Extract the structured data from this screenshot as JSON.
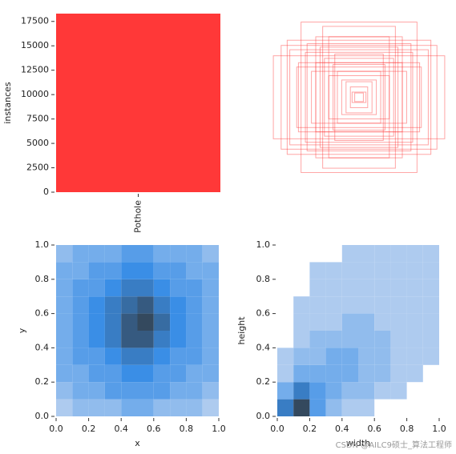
{
  "chart_data": [
    {
      "type": "bar",
      "categories": [
        "Pothole"
      ],
      "values": [
        18300
      ],
      "color": "#ff3838",
      "ylabel": "instances",
      "ylim": [
        0,
        18300
      ],
      "yticks": [
        0,
        2500,
        5000,
        7500,
        10000,
        12500,
        15000,
        17500
      ]
    },
    {
      "type": "boxes",
      "color": "#ff3838",
      "widths": [
        0.67,
        0.83,
        0.99,
        0.5,
        0.62,
        0.72,
        0.4,
        0.55,
        0.3,
        0.45,
        0.35,
        0.25,
        0.2,
        0.15,
        0.6,
        0.8,
        0.42,
        0.1,
        0.08,
        0.05,
        0.7,
        0.9,
        0.28,
        0.5,
        0.35
      ],
      "heights": [
        0.87,
        0.66,
        0.48,
        0.7,
        0.52,
        0.35,
        0.45,
        0.3,
        0.38,
        0.58,
        0.25,
        0.3,
        0.2,
        0.18,
        0.62,
        0.55,
        0.82,
        0.12,
        0.06,
        0.05,
        0.4,
        0.6,
        0.5,
        0.4,
        0.7
      ]
    },
    {
      "type": "hist2d",
      "xlabel": "x",
      "ylabel": "y",
      "colors": [
        "#aecbef",
        "#3a8ee6",
        "#34495e"
      ],
      "xlim": [
        0,
        1
      ],
      "ylim": [
        0,
        1
      ],
      "xticks": [
        {
          "value": 0,
          "label": "0.0"
        },
        0.2,
        0.4,
        0.6,
        0.8,
        {
          "value": 1,
          "label": "1.0"
        }
      ],
      "yticks": [
        {
          "value": 0,
          "label": "0.0"
        },
        0.2,
        0.4,
        0.6,
        0.8,
        {
          "value": 1,
          "label": "1.0"
        }
      ],
      "values": [
        [
          1,
          2,
          2,
          2,
          3,
          3,
          2,
          2,
          2,
          1
        ],
        [
          2,
          3,
          3,
          4,
          4,
          4,
          4,
          3,
          3,
          2
        ],
        [
          3,
          3,
          4,
          4,
          5,
          5,
          4,
          4,
          3,
          3
        ],
        [
          3,
          4,
          4,
          5,
          6,
          6,
          5,
          4,
          4,
          3
        ],
        [
          3,
          4,
          5,
          6,
          8,
          8,
          6,
          5,
          4,
          3
        ],
        [
          3,
          4,
          5,
          6,
          8,
          9,
          7,
          5,
          4,
          3
        ],
        [
          3,
          4,
          5,
          6,
          7,
          8,
          6,
          5,
          4,
          3
        ],
        [
          3,
          4,
          4,
          5,
          6,
          6,
          5,
          4,
          4,
          3
        ],
        [
          3,
          3,
          4,
          4,
          5,
          5,
          4,
          4,
          3,
          3
        ],
        [
          2,
          3,
          3,
          3,
          4,
          4,
          3,
          3,
          3,
          2
        ]
      ]
    },
    {
      "type": "hist2d",
      "xlabel": "width",
      "ylabel": "height",
      "colors": [
        "#aecbef",
        "#3a8ee6",
        "#34495e"
      ],
      "xlim": [
        0,
        1
      ],
      "ylim": [
        0,
        1
      ],
      "xticks": [
        {
          "value": 0,
          "label": "0.0"
        },
        0.2,
        0.4,
        0.6,
        0.8,
        {
          "value": 1,
          "label": "1.0"
        }
      ],
      "yticks": [
        {
          "value": 0,
          "label": "0.0"
        },
        0.2,
        0.4,
        0.6,
        0.8,
        {
          "value": 1,
          "label": "1.0"
        }
      ],
      "values": [
        [
          6,
          9,
          4,
          2,
          1,
          1,
          0,
          0,
          0,
          0
        ],
        [
          3,
          6,
          4,
          3,
          2,
          2,
          1,
          1,
          0,
          0
        ],
        [
          1,
          3,
          3,
          3,
          3,
          2,
          2,
          1,
          1,
          0
        ],
        [
          1,
          2,
          2,
          3,
          3,
          2,
          2,
          1,
          1,
          1
        ],
        [
          0,
          1,
          2,
          2,
          2,
          2,
          2,
          1,
          1,
          1
        ],
        [
          0,
          1,
          1,
          1,
          2,
          2,
          1,
          1,
          1,
          1
        ],
        [
          0,
          1,
          1,
          1,
          1,
          1,
          1,
          1,
          1,
          1
        ],
        [
          0,
          0,
          1,
          1,
          1,
          1,
          1,
          1,
          1,
          1
        ],
        [
          0,
          0,
          1,
          1,
          1,
          1,
          1,
          1,
          1,
          1
        ],
        [
          0,
          0,
          0,
          0,
          1,
          1,
          1,
          1,
          1,
          1
        ]
      ]
    }
  ],
  "watermark": "CSDN @AILC9硕士_算法工程师"
}
